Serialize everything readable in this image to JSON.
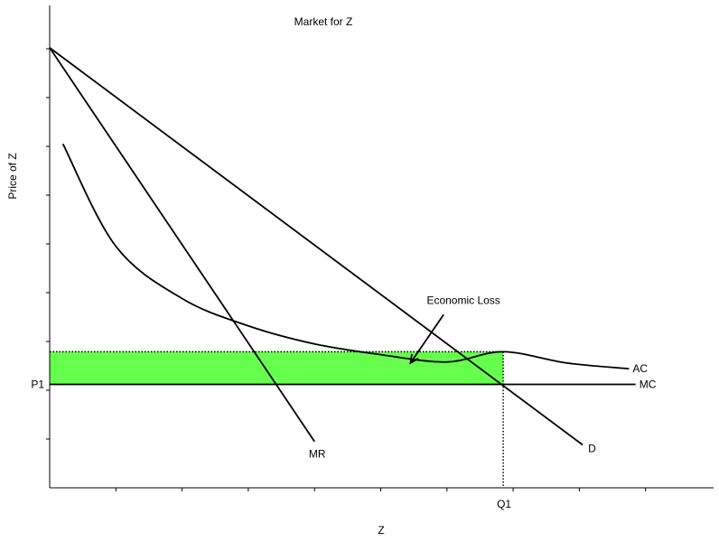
{
  "chart_data": {
    "type": "line",
    "title": "Market for Z",
    "xlabel": "Z",
    "ylabel": "Price of Z",
    "xlim": [
      0,
      100
    ],
    "ylim": [
      0,
      100
    ],
    "x_ticks_labeled": [
      {
        "x": 68.5,
        "label": "Q1"
      }
    ],
    "y_ticks_labeled": [
      {
        "y": 21.2,
        "label": "P1"
      }
    ],
    "series": [
      {
        "name": "D",
        "points": [
          [
            0,
            90.2
          ],
          [
            80.5,
            8.8
          ]
        ]
      },
      {
        "name": "MR",
        "points": [
          [
            0,
            90.2
          ],
          [
            40,
            9.5
          ]
        ]
      },
      {
        "name": "AC",
        "points": [
          [
            2,
            70.5
          ],
          [
            10,
            49.5
          ],
          [
            20,
            38.8
          ],
          [
            30,
            33.2
          ],
          [
            40,
            29.5
          ],
          [
            50,
            27.3
          ],
          [
            60,
            25.8
          ],
          [
            68.5,
            27.9
          ],
          [
            78,
            25.6
          ],
          [
            87.5,
            24.4
          ]
        ]
      },
      {
        "name": "MC",
        "points": [
          [
            0,
            21.2
          ],
          [
            88.5,
            21.2
          ]
        ]
      }
    ],
    "region": {
      "label": "Economic Loss",
      "x": [
        0,
        68.5
      ],
      "y": [
        21.2,
        27.9
      ],
      "color": "#66ff4d"
    },
    "annotation_arrow": {
      "text": "Economic Loss",
      "from": [
        59.5,
        35.5
      ],
      "to": [
        54.5,
        25.6
      ]
    }
  }
}
